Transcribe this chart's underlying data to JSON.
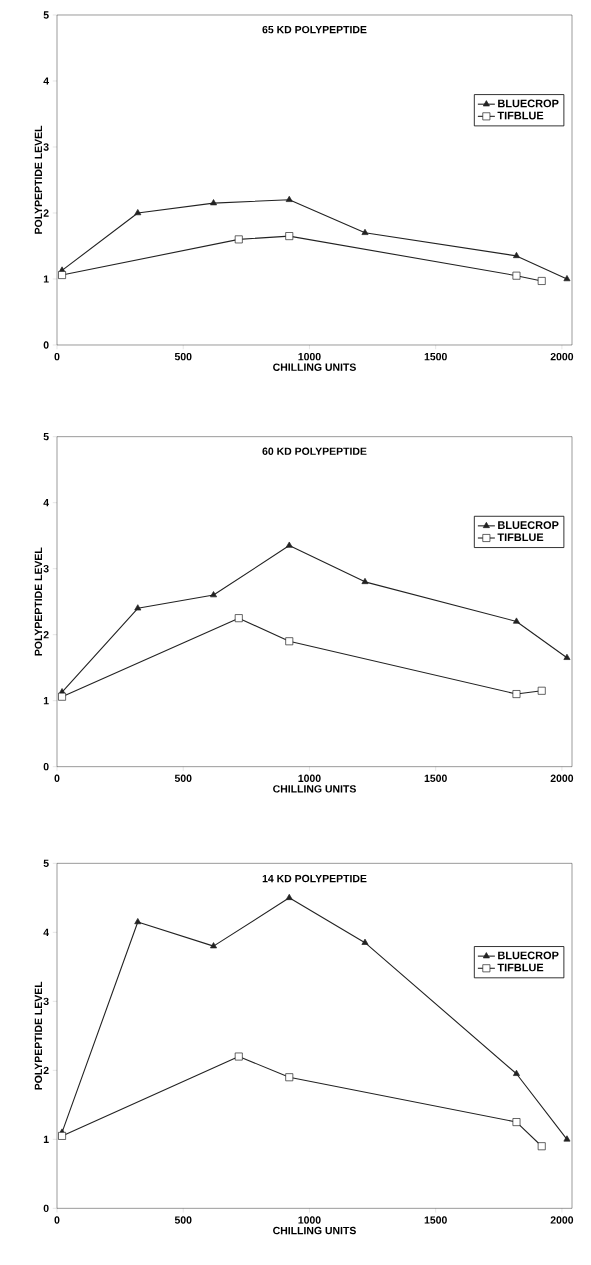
{
  "chart_data": [
    {
      "type": "line",
      "title": "65 KD POLYPEPTIDE",
      "xlabel": "CHILLING UNITS",
      "ylabel": "POLYPEPTIDE LEVEL",
      "xlim": [
        0,
        2040
      ],
      "ylim": [
        0,
        5
      ],
      "xticks": [
        0,
        500,
        1000,
        1500,
        2000
      ],
      "yticks": [
        0,
        1,
        2,
        3,
        4,
        5
      ],
      "legend": "right",
      "grid": false,
      "line_style": "solid",
      "series": [
        {
          "name": "BLUECROP",
          "color": "#222222",
          "marker": "triangle",
          "x": [
            20,
            320,
            620,
            920,
            1220,
            1820,
            2020
          ],
          "values": [
            1.13,
            2.0,
            2.15,
            2.2,
            1.7,
            1.35,
            1.0
          ]
        },
        {
          "name": "TIFBLUE",
          "color": "#222222",
          "marker": "square",
          "x": [
            20,
            720,
            920,
            1820,
            1920
          ],
          "values": [
            1.06,
            1.6,
            1.65,
            1.05,
            0.97
          ]
        }
      ]
    },
    {
      "type": "line",
      "title": "60 KD POLYPEPTIDE",
      "xlabel": "CHILLING UNITS",
      "ylabel": "POLYPEPTIDE LEVEL",
      "xlim": [
        0,
        2040
      ],
      "ylim": [
        0,
        5
      ],
      "xticks": [
        0,
        500,
        1000,
        1500,
        2000
      ],
      "yticks": [
        0,
        1,
        2,
        3,
        4,
        5
      ],
      "legend": "right",
      "grid": false,
      "line_style": "solid",
      "series": [
        {
          "name": "BLUECROP",
          "color": "#222222",
          "marker": "triangle",
          "x": [
            20,
            320,
            620,
            920,
            1220,
            1820,
            2020
          ],
          "values": [
            1.13,
            2.4,
            2.6,
            3.35,
            2.8,
            2.2,
            1.65
          ]
        },
        {
          "name": "TIFBLUE",
          "color": "#222222",
          "marker": "square",
          "x": [
            20,
            720,
            920,
            1820,
            1920
          ],
          "values": [
            1.06,
            2.25,
            1.9,
            1.1,
            1.15
          ]
        }
      ]
    },
    {
      "type": "line",
      "title": "14 KD POLYPEPTIDE",
      "xlabel": "CHILLING UNITS",
      "ylabel": "POLYPEPTIDE LEVEL",
      "xlim": [
        0,
        2040
      ],
      "ylim": [
        0,
        5
      ],
      "xticks": [
        0,
        500,
        1000,
        1500,
        2000
      ],
      "yticks": [
        0,
        1,
        2,
        3,
        4,
        5
      ],
      "legend": "right",
      "grid": false,
      "line_style": "solid",
      "series": [
        {
          "name": "BLUECROP",
          "color": "#222222",
          "marker": "triangle",
          "x": [
            20,
            320,
            620,
            920,
            1220,
            1820,
            2020
          ],
          "values": [
            1.1,
            4.15,
            3.8,
            4.5,
            3.85,
            1.95,
            1.0
          ]
        },
        {
          "name": "TIFBLUE",
          "color": "#222222",
          "marker": "square",
          "x": [
            20,
            720,
            920,
            1820,
            1920
          ],
          "values": [
            1.05,
            2.2,
            1.9,
            1.25,
            0.9
          ]
        }
      ]
    }
  ]
}
